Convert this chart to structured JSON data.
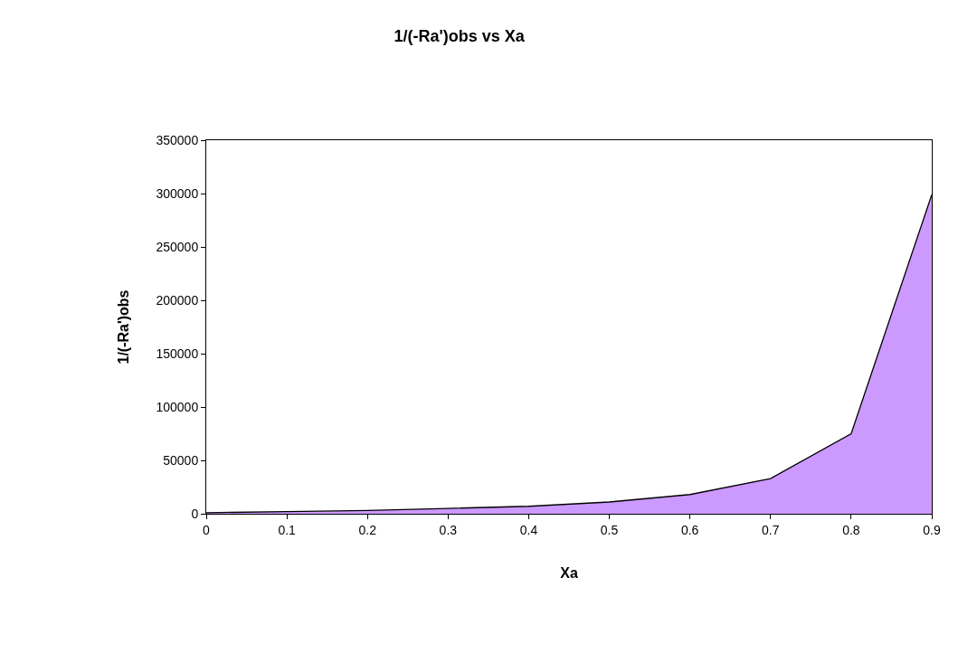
{
  "chart_data": {
    "type": "area",
    "title": "1/(-Ra')obs vs Xa",
    "xlabel": "Xa",
    "ylabel": "1/(-Ra')obs",
    "x": [
      0,
      0.1,
      0.2,
      0.3,
      0.4,
      0.5,
      0.6,
      0.7,
      0.8,
      0.9
    ],
    "series": [
      {
        "color": "#cc99ff",
        "values": [
          1000,
          2000,
          3000,
          5000,
          7000,
          11000,
          18000,
          33000,
          75000,
          299000
        ]
      }
    ],
    "xlim": [
      0,
      0.9
    ],
    "xticks": [
      0,
      0.1,
      0.2,
      0.3,
      0.4,
      0.5,
      0.6,
      0.7,
      0.8,
      0.9
    ],
    "ylim": [
      0,
      350000
    ],
    "yticks": [
      0,
      50000,
      100000,
      150000,
      200000,
      250000,
      300000,
      350000
    ]
  }
}
